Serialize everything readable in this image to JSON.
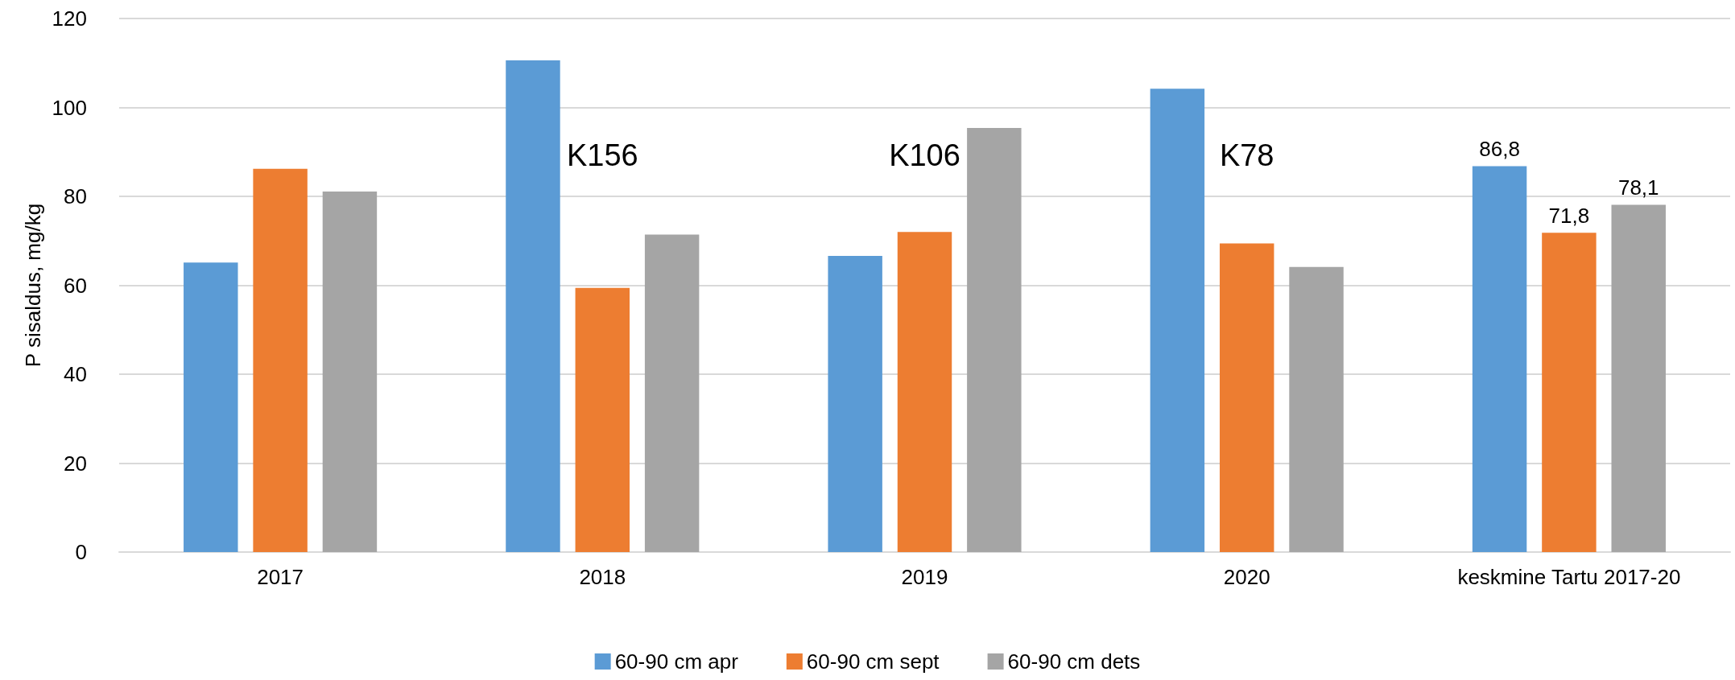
{
  "chart_data": {
    "type": "bar",
    "ylabel": "P sisaldus, mg/kg",
    "categories": [
      "2017",
      "2018",
      "2019",
      "2020",
      "keskmine Tartu 2017-20"
    ],
    "series": [
      {
        "name": "60-90 cm apr",
        "color": "#5b9bd5",
        "values": [
          65.1,
          110.6,
          66.6,
          104.2,
          86.8
        ],
        "value_labels": [
          null,
          null,
          null,
          null,
          "86,8"
        ]
      },
      {
        "name": "60-90 cm sept",
        "color": "#ed7d31",
        "values": [
          86.2,
          59.4,
          72.0,
          69.4,
          71.8
        ],
        "value_labels": [
          null,
          null,
          null,
          null,
          "71,8"
        ]
      },
      {
        "name": "60-90 cm dets",
        "color": "#a5a5a5",
        "values": [
          81.1,
          71.4,
          95.4,
          64.1,
          78.1
        ],
        "value_labels": [
          null,
          null,
          null,
          null,
          "78,1"
        ]
      }
    ],
    "ylim": [
      0,
      120
    ],
    "yticks": [
      0,
      20,
      40,
      60,
      80,
      100,
      120
    ],
    "grid": "y",
    "legend": "bottom",
    "annotations": [
      "K156",
      "K106",
      "K78"
    ]
  }
}
